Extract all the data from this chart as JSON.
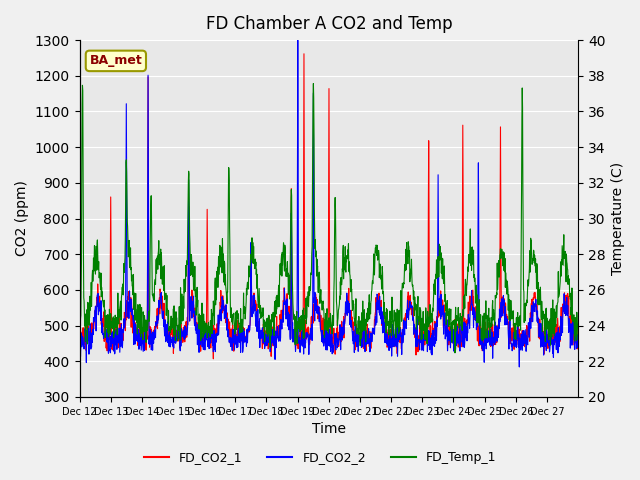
{
  "title": "FD Chamber A CO2 and Temp",
  "xlabel": "Time",
  "ylabel_left": "CO2 (ppm)",
  "ylabel_right": "Temperature (C)",
  "ylim_left": [
    300,
    1300
  ],
  "ylim_right": [
    20,
    40
  ],
  "yticks_left": [
    300,
    400,
    500,
    600,
    700,
    800,
    900,
    1000,
    1100,
    1200,
    1300
  ],
  "yticks_right": [
    20,
    22,
    24,
    26,
    28,
    30,
    32,
    34,
    36,
    38,
    40
  ],
  "xtick_labels": [
    "Dec 12",
    "Dec 13",
    "Dec 14",
    "Dec 15",
    "Dec 16",
    "Dec 17",
    "Dec 18",
    "Dec 19",
    "Dec 20",
    "Dec 21",
    "Dec 22",
    "Dec 23",
    "Dec 24",
    "Dec 25",
    "Dec 26",
    "Dec 27"
  ],
  "legend_labels": [
    "FD_CO2_1",
    "FD_CO2_2",
    "FD_Temp_1"
  ],
  "annotation_text": "BA_met",
  "annotation_color": "#8B0000",
  "annotation_bg": "#FFFFCC",
  "bg_color": "#E8E8E8",
  "fig_bg": "#F0F0F0"
}
